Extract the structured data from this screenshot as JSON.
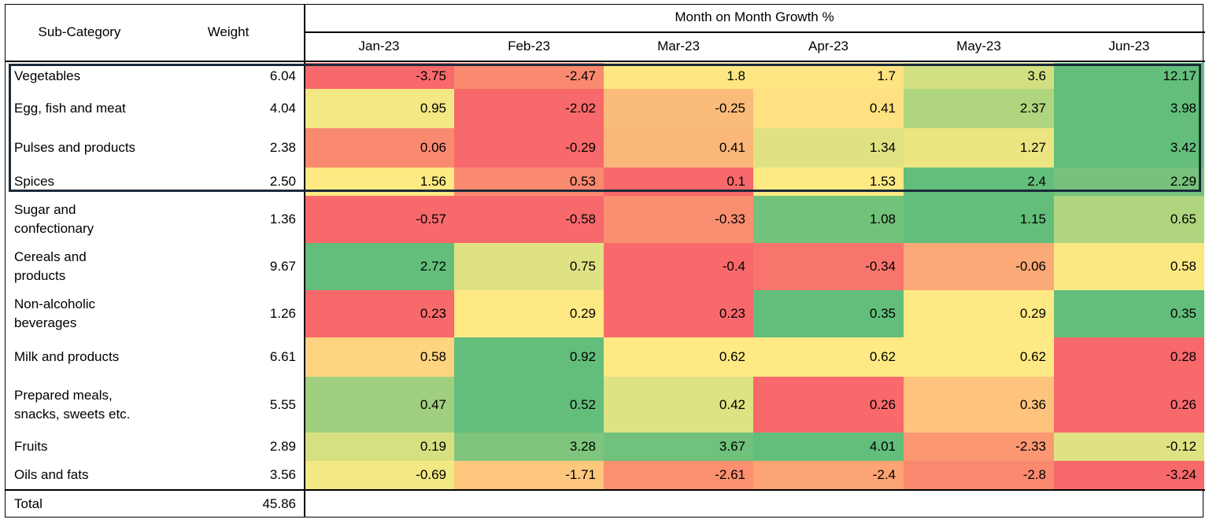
{
  "table": {
    "header": {
      "subcategory_label": "Sub-Category",
      "weight_label": "Weight",
      "group_label": "Month on Month Growth %",
      "months": [
        "Jan-23",
        "Feb-23",
        "Mar-23",
        "Apr-23",
        "May-23",
        "Jun-23"
      ]
    },
    "total": {
      "label": "Total",
      "weight": "45.86"
    },
    "highlighted_rows": [
      "Vegetables",
      "Egg, fish and meat",
      "Pulses and products",
      "Spices"
    ]
  },
  "chart_data": {
    "type": "heatmap",
    "title": "Month on Month Growth %",
    "categories": [
      "Jan-23",
      "Feb-23",
      "Mar-23",
      "Apr-23",
      "May-23",
      "Jun-23"
    ],
    "color_scale": {
      "low": "#f8696b",
      "mid": "#ffeb84",
      "high": "#63be7b"
    },
    "rows": [
      {
        "name": "Vegetables",
        "label_lines": [
          "Vegetables"
        ],
        "weight": "6.04",
        "values": [
          -3.75,
          -2.47,
          1.8,
          1.7,
          3.6,
          12.17
        ],
        "colors": [
          "#f8696b",
          "#f98a6f",
          "#fee782",
          "#fee482",
          "#d2df81",
          "#63be7b"
        ]
      },
      {
        "name": "Egg, fish and meat",
        "label_lines": [
          "Egg, fish and meat"
        ],
        "weight": "4.04",
        "values": [
          0.95,
          -2.02,
          -0.25,
          0.41,
          2.37,
          3.98
        ],
        "colors": [
          "#f2e884",
          "#f8696b",
          "#fbbb7b",
          "#fee182",
          "#b0d57f",
          "#63be7b"
        ]
      },
      {
        "name": "Pulses and products",
        "label_lines": [
          "Pulses and products"
        ],
        "weight": "2.38",
        "values": [
          0.06,
          -0.29,
          0.41,
          1.34,
          1.27,
          3.42
        ],
        "colors": [
          "#f98a6f",
          "#f8696b",
          "#fbb679",
          "#dfe283",
          "#ece582",
          "#63be7b"
        ]
      },
      {
        "name": "Spices",
        "label_lines": [
          "Spices"
        ],
        "weight": "2.50",
        "values": [
          1.56,
          0.53,
          0.1,
          1.53,
          2.4,
          2.29
        ],
        "colors": [
          "#fee983",
          "#f98a6f",
          "#f8696b",
          "#fee983",
          "#63be7b",
          "#76c27c"
        ]
      },
      {
        "name": "Sugar and confectionary",
        "label_lines": [
          "Sugar and",
          "confectionary"
        ],
        "weight": "1.36",
        "values": [
          -0.57,
          -0.58,
          -0.33,
          1.08,
          1.15,
          0.65
        ],
        "colors": [
          "#f8696b",
          "#f8696b",
          "#f98f70",
          "#72c27b",
          "#63be7b",
          "#b0d57f"
        ]
      },
      {
        "name": "Cereals and products",
        "label_lines": [
          "Cereals and",
          "products"
        ],
        "weight": "9.67",
        "values": [
          2.72,
          0.75,
          -0.4,
          -0.34,
          -0.06,
          0.58
        ],
        "colors": [
          "#63be7b",
          "#dfe283",
          "#f8696b",
          "#f8756d",
          "#fba977",
          "#fae883"
        ]
      },
      {
        "name": "Non-alcoholic beverages",
        "label_lines": [
          "Non-alcoholic",
          "beverages"
        ],
        "weight": "1.26",
        "values": [
          0.23,
          0.29,
          0.23,
          0.35,
          0.29,
          0.35
        ],
        "colors": [
          "#f8696b",
          "#ffe985",
          "#f8696b",
          "#63be7b",
          "#ffe985",
          "#63be7b"
        ]
      },
      {
        "name": "Milk and products",
        "label_lines": [
          "Milk and products"
        ],
        "weight": "6.61",
        "values": [
          0.58,
          0.92,
          0.62,
          0.62,
          0.62,
          0.28
        ],
        "colors": [
          "#fed480",
          "#63be7b",
          "#ffe984",
          "#ffe984",
          "#ffe984",
          "#f8696b"
        ]
      },
      {
        "name": "Prepared meals, snacks, sweets etc.",
        "label_lines": [
          "Prepared meals,",
          "snacks, sweets etc."
        ],
        "weight": "5.55",
        "values": [
          0.47,
          0.52,
          0.42,
          0.26,
          0.36,
          0.26
        ],
        "colors": [
          "#a0d07f",
          "#63be7b",
          "#dde283",
          "#f8696b",
          "#fec47d",
          "#f8696b"
        ]
      },
      {
        "name": "Fruits",
        "label_lines": [
          "Fruits"
        ],
        "weight": "2.89",
        "values": [
          0.19,
          3.28,
          3.67,
          4.01,
          -2.33,
          -0.12
        ],
        "colors": [
          "#d7e081",
          "#7fc57d",
          "#6fc17b",
          "#63be7b",
          "#fb9872",
          "#dfe283"
        ]
      },
      {
        "name": "Oils and fats",
        "label_lines": [
          "Oils and fats"
        ],
        "weight": "3.56",
        "values": [
          -0.69,
          -1.71,
          -2.61,
          -2.4,
          -2.8,
          -3.24
        ],
        "colors": [
          "#f2e884",
          "#fdc77d",
          "#fa9070",
          "#fca473",
          "#f98a6f",
          "#f8696b"
        ]
      }
    ]
  }
}
